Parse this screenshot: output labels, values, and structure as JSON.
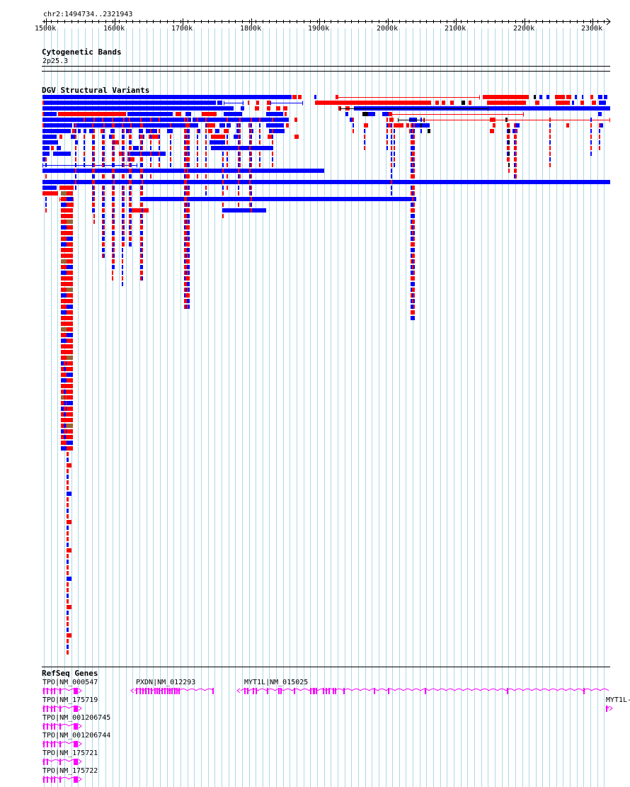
{
  "ruler": {
    "range_label": "chr2:1494734..2321943",
    "ticks": [
      "1500k",
      "1600k",
      "1700k",
      "1800k",
      "1900k",
      "2000k",
      "2100k",
      "2200k",
      "2300k"
    ]
  },
  "tracks": {
    "cytoband": {
      "title": "Cytogenetic Bands",
      "band": "2p25.3"
    },
    "dgv": {
      "title": "DGV Structural Variants"
    },
    "refseq": {
      "title": "RefSeq Genes"
    }
  },
  "genes": [
    {
      "label": "TPO|NM_000547"
    },
    {
      "label": "TPO|NM_175719"
    },
    {
      "label": "TPO|NM_001206745"
    },
    {
      "label": "TPO|NM_001206744"
    },
    {
      "label": "TPO|NM_175721"
    },
    {
      "label": "TPO|NM_175722"
    },
    {
      "label": "PXDN|NM_012293"
    },
    {
      "label": "MYT1L|NM_015025"
    },
    {
      "label": "MYT1L-"
    }
  ],
  "colors": {
    "gain": "#0000ff",
    "loss": "#ff0000",
    "inversion": "#000000",
    "complex": "#996633",
    "gene": "#ff00ff",
    "grid": "#add8e6"
  }
}
